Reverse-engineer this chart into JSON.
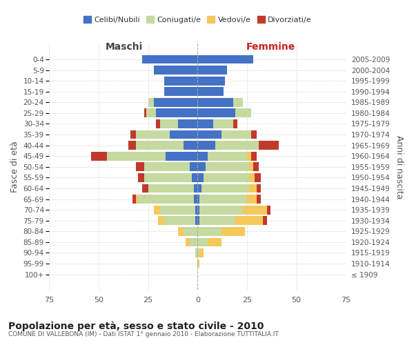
{
  "age_groups": [
    "0-4",
    "5-9",
    "10-14",
    "15-19",
    "20-24",
    "25-29",
    "30-34",
    "35-39",
    "40-44",
    "45-49",
    "50-54",
    "55-59",
    "60-64",
    "65-69",
    "70-74",
    "75-79",
    "80-84",
    "85-89",
    "90-94",
    "95-99",
    "100+"
  ],
  "birth_years": [
    "2005-2009",
    "2000-2004",
    "1995-1999",
    "1990-1994",
    "1985-1989",
    "1980-1984",
    "1975-1979",
    "1970-1974",
    "1965-1969",
    "1960-1964",
    "1955-1959",
    "1950-1954",
    "1945-1949",
    "1940-1944",
    "1935-1939",
    "1930-1934",
    "1925-1929",
    "1920-1924",
    "1915-1919",
    "1910-1914",
    "≤ 1909"
  ],
  "male": {
    "celibi": [
      28,
      22,
      17,
      17,
      22,
      21,
      10,
      14,
      7,
      16,
      4,
      3,
      2,
      2,
      1,
      1,
      0,
      0,
      0,
      0,
      0
    ],
    "coniugati": [
      0,
      0,
      0,
      0,
      3,
      5,
      9,
      17,
      24,
      30,
      23,
      24,
      23,
      28,
      18,
      16,
      7,
      4,
      1,
      0,
      0
    ],
    "vedovi": [
      0,
      0,
      0,
      0,
      0,
      0,
      0,
      0,
      0,
      0,
      0,
      0,
      0,
      1,
      3,
      3,
      3,
      2,
      0,
      0,
      0
    ],
    "divorziati": [
      0,
      0,
      0,
      0,
      0,
      1,
      2,
      3,
      4,
      8,
      4,
      3,
      3,
      2,
      0,
      0,
      0,
      0,
      0,
      0,
      0
    ]
  },
  "female": {
    "nubili": [
      28,
      15,
      14,
      13,
      18,
      19,
      8,
      12,
      9,
      5,
      4,
      3,
      2,
      1,
      1,
      1,
      0,
      0,
      0,
      0,
      0
    ],
    "coniugate": [
      0,
      0,
      0,
      0,
      5,
      8,
      10,
      15,
      22,
      20,
      22,
      23,
      24,
      24,
      22,
      18,
      12,
      5,
      1,
      0,
      0
    ],
    "vedove": [
      0,
      0,
      0,
      0,
      0,
      0,
      0,
      0,
      0,
      2,
      2,
      3,
      4,
      5,
      12,
      14,
      12,
      7,
      2,
      1,
      0
    ],
    "divorziate": [
      0,
      0,
      0,
      0,
      0,
      0,
      2,
      3,
      10,
      3,
      3,
      3,
      2,
      2,
      2,
      2,
      0,
      0,
      0,
      0,
      0
    ]
  },
  "colors": {
    "celibi": "#4472c4",
    "coniugati": "#c5d9a0",
    "vedovi": "#f5c85c",
    "divorziati": "#c0392b"
  },
  "xlim": 75,
  "title": "Popolazione per età, sesso e stato civile - 2010",
  "subtitle": "COMUNE DI VALLEBONA (IM) - Dati ISTAT 1° gennaio 2010 - Elaborazione TUTTITALIA.IT",
  "ylabel_left": "Fasce di età",
  "ylabel_right": "Anni di nascita",
  "xlabel_male": "Maschi",
  "xlabel_female": "Femmine",
  "background_color": "#ffffff",
  "grid_color": "#cccccc"
}
